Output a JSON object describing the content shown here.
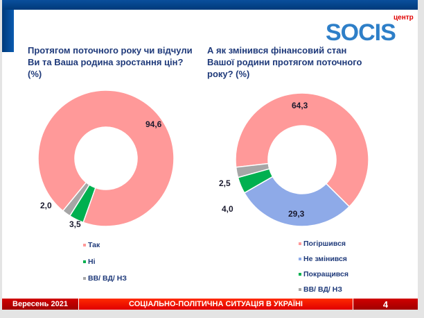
{
  "logo": {
    "small": "центр",
    "main": "SOCIS"
  },
  "chart_data": [
    {
      "type": "pie",
      "title": "Протягом поточного року чи відчули Ви та Ваша родина зростання цін? (%)",
      "categories": [
        "Так",
        "Ні",
        "ВВ/ ВД/ НЗ"
      ],
      "values": [
        94.6,
        3.5,
        2.0
      ],
      "labels": [
        "94,6",
        "3,5",
        "2,0"
      ],
      "colors": [
        "#ff9999",
        "#00b050",
        "#a6a6a6"
      ],
      "donut": true,
      "legend": "bottom"
    },
    {
      "type": "pie",
      "title": "А як змінився фінансовий стан Вашої родини протягом поточного року? (%)",
      "categories": [
        "Погіршився",
        "Не змінився",
        "Покращився",
        "ВВ/ ВД/ НЗ"
      ],
      "values": [
        64.3,
        29.3,
        4.0,
        2.5
      ],
      "labels": [
        "64,3",
        "29,3",
        "4,0",
        "2,5"
      ],
      "colors": [
        "#ff9999",
        "#8eaae8",
        "#00b050",
        "#a6a6a6"
      ],
      "donut": true,
      "legend": "bottom"
    }
  ],
  "footer": {
    "date": "Вересень 2021",
    "title": "СОЦІАЛЬНО-ПОЛІТИЧНА СИТУАЦІЯ В УКРАЇНІ",
    "page": "4"
  }
}
